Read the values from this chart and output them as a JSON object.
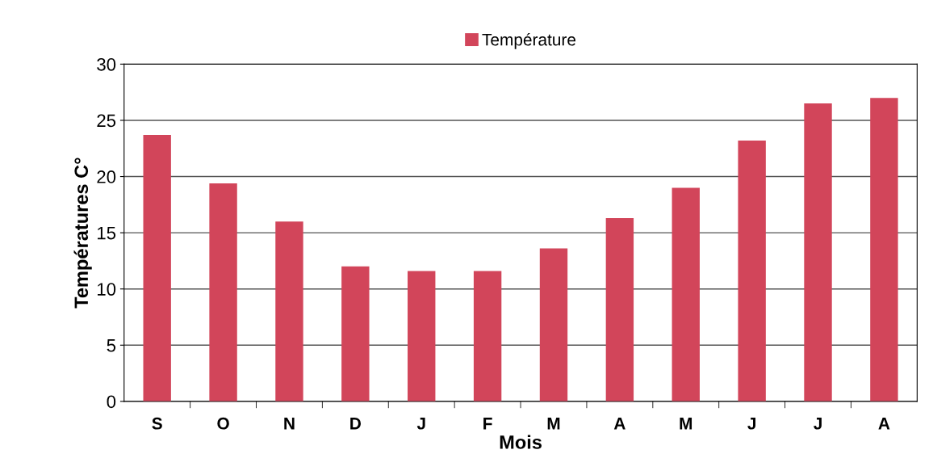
{
  "chart_data": {
    "type": "bar",
    "xlabel": "Mois",
    "ylabel": "Températures C°",
    "categories": [
      "S",
      "O",
      "N",
      "D",
      "J",
      "F",
      "M",
      "A",
      "M",
      "J",
      "J",
      "A"
    ],
    "series": [
      {
        "name": "Température",
        "color": "#d2455a",
        "values": [
          23.7,
          19.4,
          16.0,
          12.0,
          11.6,
          11.6,
          13.6,
          16.3,
          19.0,
          23.2,
          26.5,
          27.0
        ]
      }
    ],
    "ylim": [
      0,
      30
    ],
    "yticks": [
      0,
      5,
      10,
      15,
      20,
      25,
      30
    ],
    "grid": "y",
    "legend": "top"
  }
}
